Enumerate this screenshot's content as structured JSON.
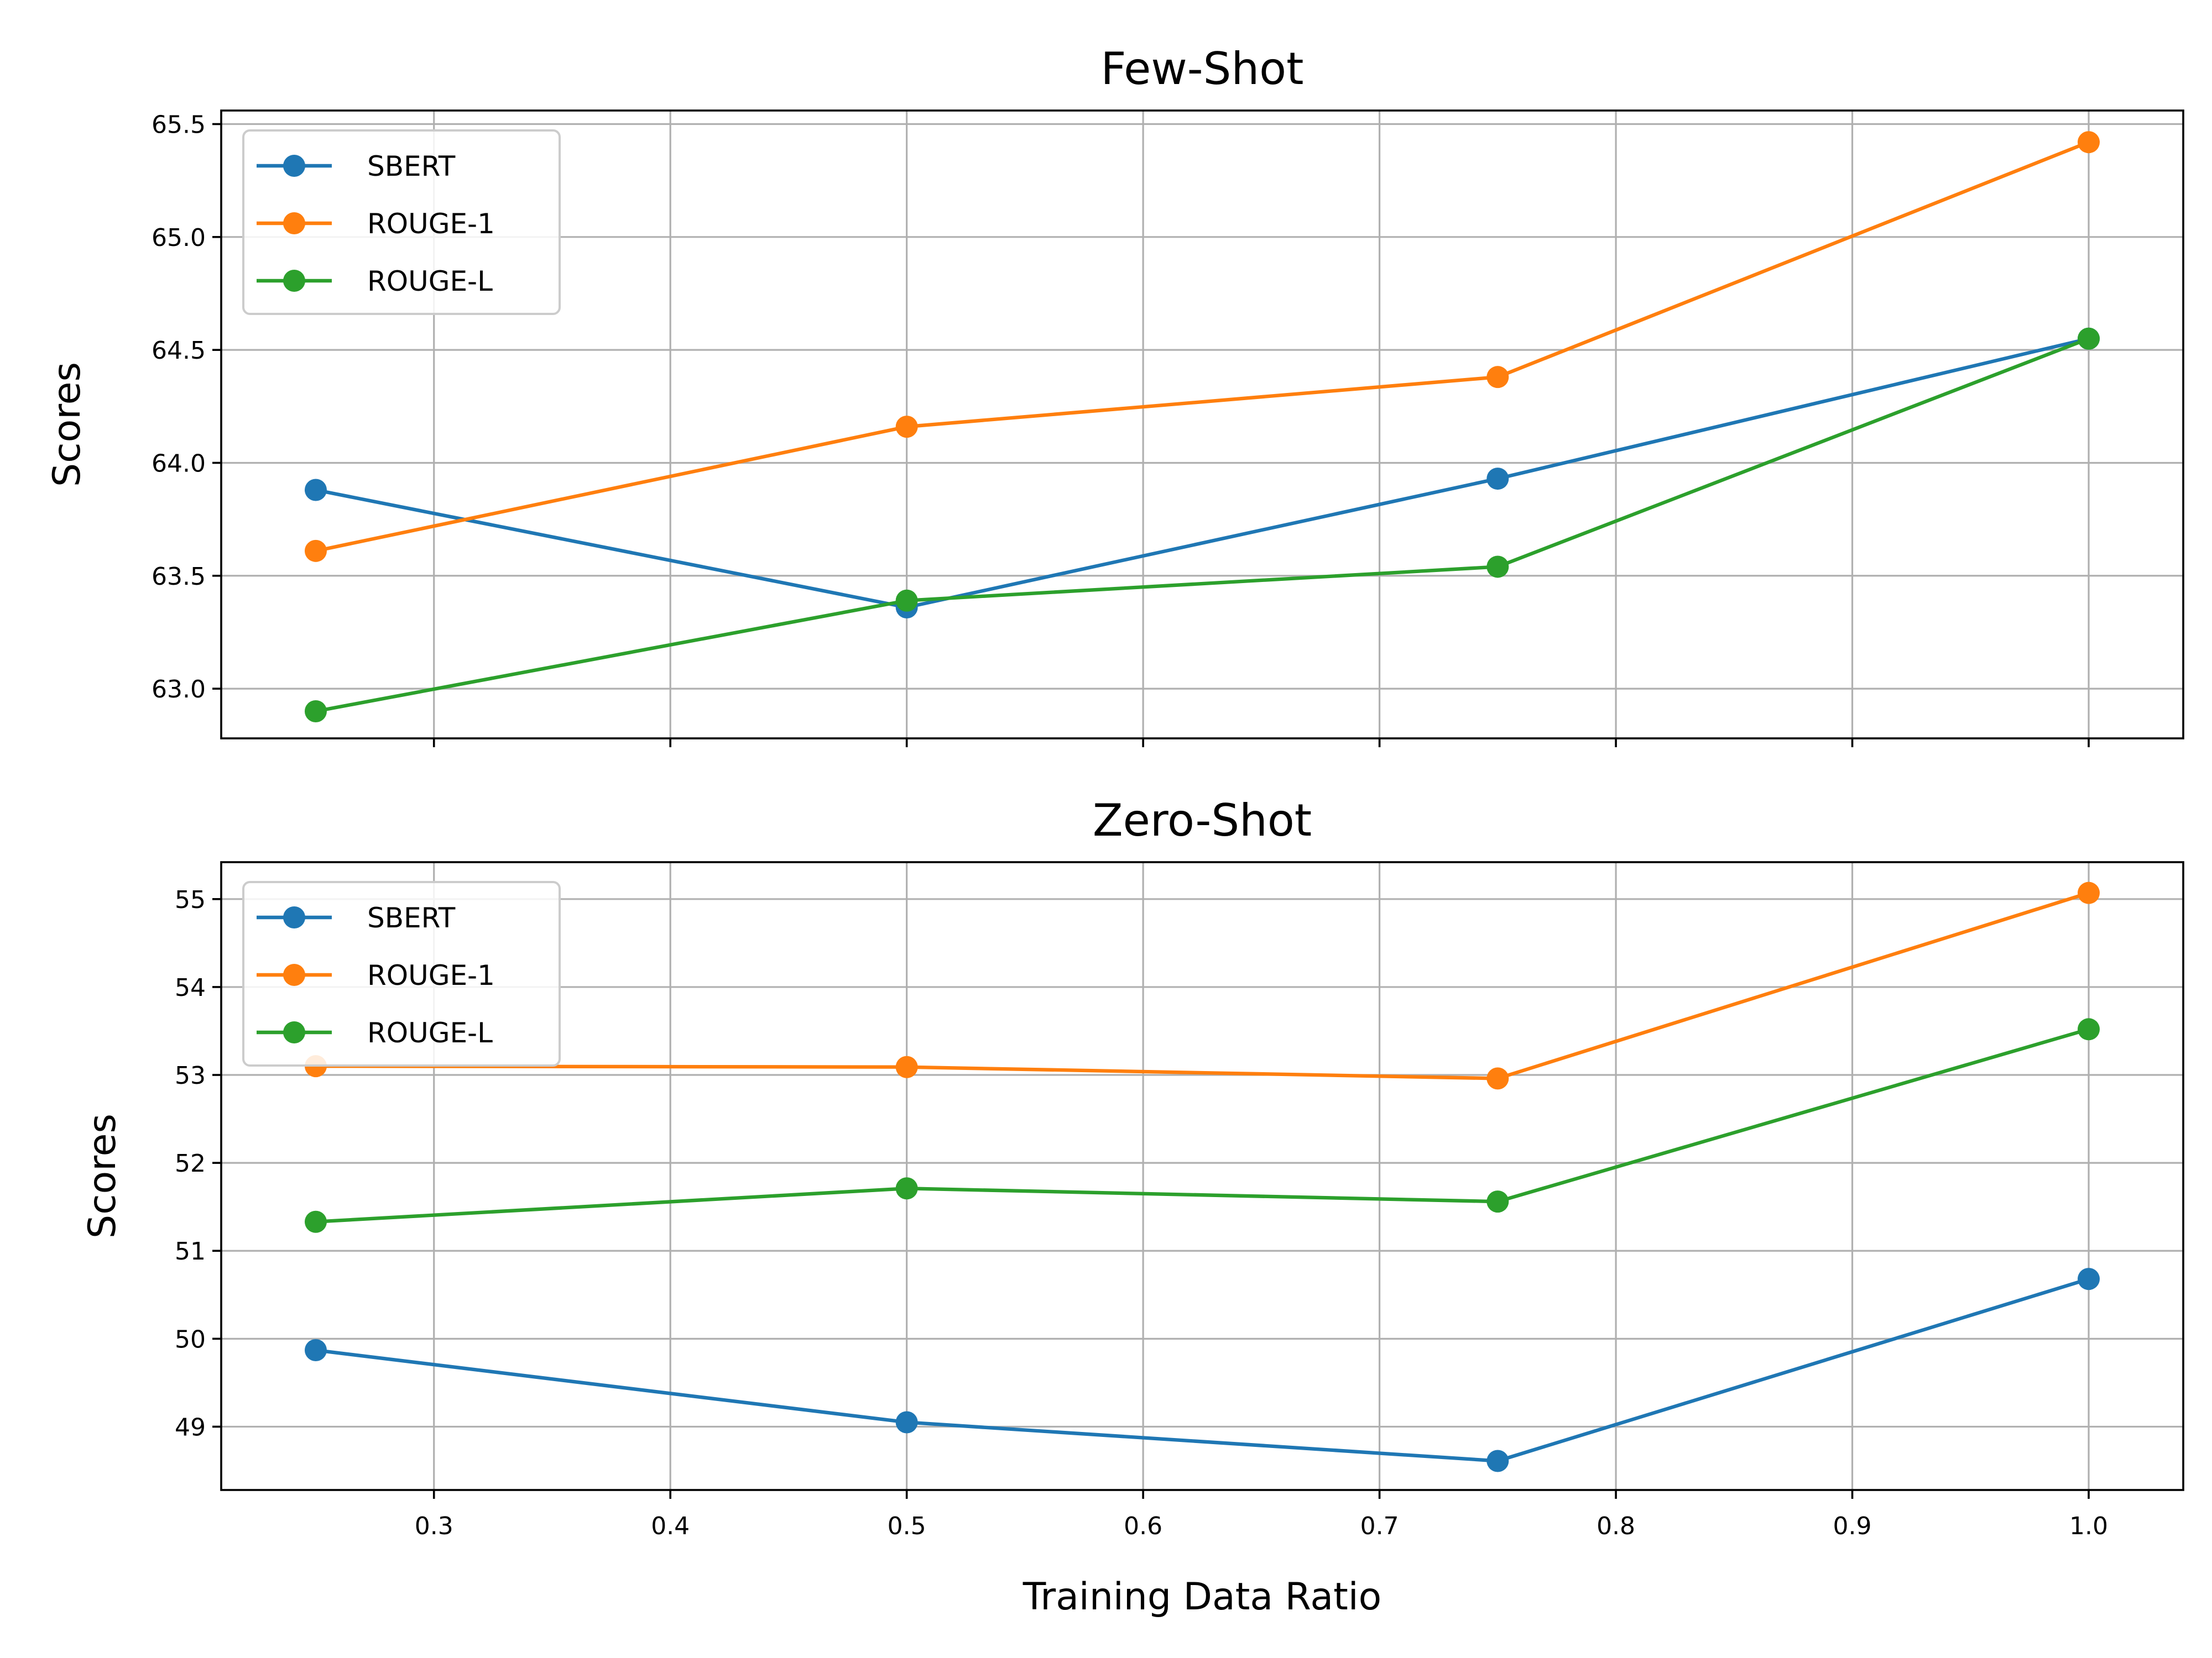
{
  "figure": {
    "xlabel": "Training Data Ratio"
  },
  "chart_data": [
    {
      "type": "line",
      "title": "Few-Shot",
      "xlabel": "",
      "ylabel": "Scores",
      "xlim": [
        0.21,
        1.04
      ],
      "ylim": [
        62.78,
        65.56
      ],
      "xticks": [
        0.3,
        0.4,
        0.5,
        0.6,
        0.7,
        0.8,
        0.9,
        1.0
      ],
      "yticks": [
        63.0,
        63.5,
        64.0,
        64.5,
        65.0,
        65.5
      ],
      "ytick_decimals": 1,
      "show_xtick_labels": false,
      "grid": true,
      "legend": "upper-left",
      "x": [
        0.25,
        0.5,
        0.75,
        1.0
      ],
      "series": [
        {
          "name": "SBERT",
          "color": "#1f77b4",
          "values": [
            63.88,
            63.36,
            63.93,
            64.55
          ]
        },
        {
          "name": "ROUGE-1",
          "color": "#ff7f0e",
          "values": [
            63.61,
            64.16,
            64.38,
            65.42
          ]
        },
        {
          "name": "ROUGE-L",
          "color": "#2ca02c",
          "values": [
            62.9,
            63.39,
            63.54,
            64.55
          ]
        }
      ]
    },
    {
      "type": "line",
      "title": "Zero-Shot",
      "xlabel": "Training Data Ratio",
      "ylabel": "Scores",
      "xlim": [
        0.21,
        1.04
      ],
      "ylim": [
        48.28,
        55.42
      ],
      "xticks": [
        0.3,
        0.4,
        0.5,
        0.6,
        0.7,
        0.8,
        0.9,
        1.0
      ],
      "yticks": [
        49,
        50,
        51,
        52,
        53,
        54,
        55
      ],
      "ytick_decimals": 0,
      "show_xtick_labels": true,
      "grid": true,
      "legend": "upper-left",
      "x": [
        0.25,
        0.5,
        0.75,
        1.0
      ],
      "series": [
        {
          "name": "SBERT",
          "color": "#1f77b4",
          "values": [
            49.87,
            49.05,
            48.61,
            50.68
          ]
        },
        {
          "name": "ROUGE-1",
          "color": "#ff7f0e",
          "values": [
            53.1,
            53.09,
            52.96,
            55.07
          ]
        },
        {
          "name": "ROUGE-L",
          "color": "#2ca02c",
          "values": [
            51.33,
            51.71,
            51.56,
            53.52
          ]
        }
      ]
    }
  ]
}
